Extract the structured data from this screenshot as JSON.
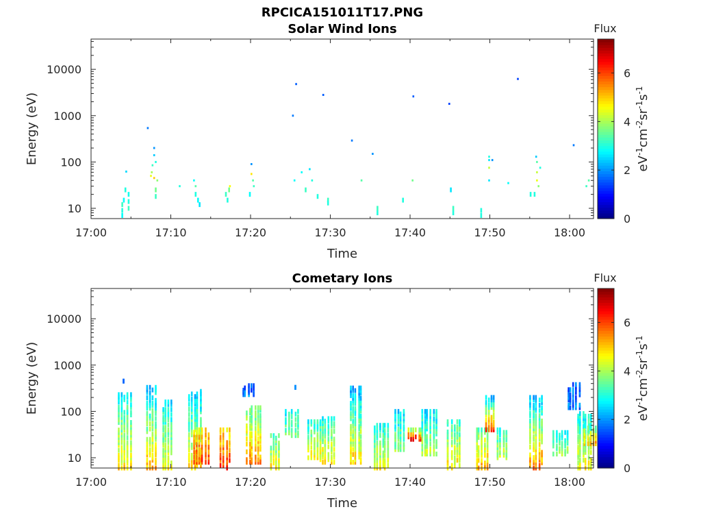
{
  "figure_title": "RPCICA151011T17.PNG",
  "chart_data": [
    {
      "type": "heatmap",
      "title": "Solar Wind Ions",
      "xlabel": "Time",
      "ylabel": "Energy (eV)",
      "yscale": "log",
      "xlim": [
        "17:00",
        "18:03"
      ],
      "ylim": [
        6,
        45000
      ],
      "xticks": [
        "17:00",
        "17:10",
        "17:20",
        "17:30",
        "17:40",
        "17:50",
        "18:00"
      ],
      "yticks": [
        "10",
        "100",
        "1000",
        "10000"
      ],
      "colorbar": {
        "label": "Flux",
        "unit": "eV⁻¹cm⁻²sr⁻¹s⁻¹",
        "range": [
          0,
          7.4
        ],
        "ticks": [
          "0",
          "2",
          "4",
          "6"
        ],
        "colormap": "jet"
      },
      "points": [
        [
          "17:03.8",
          7,
          2.8
        ],
        [
          "17:03.8",
          9,
          3.0
        ],
        [
          "17:03.8",
          12,
          3.2
        ],
        [
          "17:04.0",
          15,
          2.8
        ],
        [
          "17:04.2",
          25,
          3.0
        ],
        [
          "17:04.3",
          62,
          2.5
        ],
        [
          "17:04.6",
          10,
          3.2
        ],
        [
          "17:04.6",
          14,
          3.0
        ],
        [
          "17:04.6",
          20,
          2.9
        ],
        [
          "17:07.0",
          540,
          1.8
        ],
        [
          "17:07.4",
          50,
          4.5
        ],
        [
          "17:07.5",
          60,
          4.0
        ],
        [
          "17:07.6",
          85,
          3.2
        ],
        [
          "17:07.8",
          140,
          2.4
        ],
        [
          "17:07.8",
          200,
          2.0
        ],
        [
          "17:07.8",
          45,
          5.0
        ],
        [
          "17:08.0",
          100,
          3.0
        ],
        [
          "17:08.0",
          25,
          3.6
        ],
        [
          "17:08.0",
          18,
          3.2
        ],
        [
          "17:08.2",
          40,
          3.8
        ],
        [
          "17:11.0",
          30,
          3.0
        ],
        [
          "17:12.8",
          40,
          2.8
        ],
        [
          "17:13.0",
          30,
          3.4
        ],
        [
          "17:13.0",
          20,
          3.0
        ],
        [
          "17:13.3",
          15,
          2.8
        ],
        [
          "17:13.5",
          12,
          2.6
        ],
        [
          "17:16.8",
          20,
          3.2
        ],
        [
          "17:17.0",
          15,
          3.0
        ],
        [
          "17:17.2",
          25,
          3.6
        ],
        [
          "17:17.3",
          30,
          4.6
        ],
        [
          "17:20.0",
          90,
          2.0
        ],
        [
          "17:20.0",
          55,
          4.8
        ],
        [
          "17:20.2",
          40,
          3.4
        ],
        [
          "17:20.3",
          30,
          3.2
        ],
        [
          "17:19.8",
          20,
          2.8
        ],
        [
          "17:25.2",
          1000,
          1.8
        ],
        [
          "17:25.6",
          4800,
          1.6
        ],
        [
          "17:25.4",
          40,
          2.8
        ],
        [
          "17:26.3",
          60,
          2.8
        ],
        [
          "17:26.8",
          25,
          3.2
        ],
        [
          "17:27.3",
          70,
          2.6
        ],
        [
          "17:27.6",
          40,
          3.0
        ],
        [
          "17:28.3",
          18,
          3.0
        ],
        [
          "17:29.0",
          2800,
          1.6
        ],
        [
          "17:29.6",
          15,
          3.2
        ],
        [
          "17:29.6",
          13,
          3.0
        ],
        [
          "17:32.6",
          290,
          1.8
        ],
        [
          "17:33.8",
          40,
          3.4
        ],
        [
          "17:35.2",
          150,
          2.0
        ],
        [
          "17:35.8",
          8,
          3.0
        ],
        [
          "17:35.8",
          10,
          3.2
        ],
        [
          "17:39.0",
          15,
          3.0
        ],
        [
          "17:40.3",
          2600,
          1.6
        ],
        [
          "17:40.2",
          40,
          3.6
        ],
        [
          "17:44.8",
          1800,
          1.4
        ],
        [
          "17:45.0",
          25,
          2.6
        ],
        [
          "17:45.3",
          8,
          3.0
        ],
        [
          "17:45.3",
          10,
          3.2
        ],
        [
          "17:48.8",
          7,
          3.0
        ],
        [
          "17:48.8",
          9,
          3.0
        ],
        [
          "17:49.8",
          130,
          3.0
        ],
        [
          "17:49.8",
          110,
          2.6
        ],
        [
          "17:49.8",
          75,
          4.2
        ],
        [
          "17:50.2",
          110,
          2.0
        ],
        [
          "17:49.8",
          40,
          2.6
        ],
        [
          "17:52.2",
          35,
          2.8
        ],
        [
          "17:53.4",
          6200,
          1.4
        ],
        [
          "17:55.0",
          20,
          3.0
        ],
        [
          "17:55.5",
          20,
          3.0
        ],
        [
          "17:55.7",
          130,
          2.4
        ],
        [
          "17:55.8",
          60,
          4.2
        ],
        [
          "17:55.8",
          40,
          4.5
        ],
        [
          "17:55.8",
          100,
          3.4
        ],
        [
          "17:56.0",
          30,
          3.8
        ],
        [
          "17:56.2",
          75,
          3.0
        ],
        [
          "18:00.4",
          230,
          1.8
        ],
        [
          "18:02.0",
          30,
          3.2
        ],
        [
          "18:02.3",
          40,
          3.4
        ]
      ]
    },
    {
      "type": "heatmap",
      "title": "Cometary Ions",
      "xlabel": "Time",
      "ylabel": "Energy (eV)",
      "yscale": "log",
      "xlim": [
        "17:00",
        "18:03"
      ],
      "ylim": [
        6,
        45000
      ],
      "xticks": [
        "17:00",
        "17:10",
        "17:20",
        "17:30",
        "17:40",
        "17:50",
        "18:00"
      ],
      "yticks": [
        "10",
        "100",
        "1000",
        "10000"
      ],
      "colorbar": {
        "label": "Flux",
        "unit": "eV⁻¹cm⁻²sr⁻¹s⁻¹",
        "range": [
          0,
          7.4
        ],
        "ticks": [
          "0",
          "2",
          "4",
          "6"
        ],
        "colormap": "jet"
      },
      "bursts": [
        [
          "17:04.0",
          6,
          230,
          4.8,
          2.8
        ],
        [
          "17:04.5",
          450,
          450,
          1.8,
          1.8
        ],
        [
          "17:07.5",
          6,
          330,
          5.2,
          2.4
        ],
        [
          "17:09.5",
          6,
          160,
          4.6,
          2.6
        ],
        [
          "17:12.8",
          6,
          270,
          5.0,
          2.4
        ],
        [
          "17:13.4",
          8,
          40,
          6.0,
          4.8
        ],
        [
          "17:16.8",
          6,
          40,
          6.2,
          4.8
        ],
        [
          "17:20.0",
          8,
          120,
          5.6,
          3.4
        ],
        [
          "17:19.5",
          230,
          360,
          1.8,
          1.6
        ],
        [
          "17:23.0",
          6,
          30,
          4.8,
          3.2
        ],
        [
          "17:25.0",
          30,
          100,
          3.8,
          2.8
        ],
        [
          "17:26.2",
          330,
          330,
          1.8,
          1.8
        ],
        [
          "17:27.8",
          10,
          60,
          4.6,
          3.0
        ],
        [
          "17:29.2",
          8,
          70,
          4.8,
          3.0
        ],
        [
          "17:33.0",
          8,
          320,
          5.0,
          2.2
        ],
        [
          "17:36.0",
          6,
          50,
          4.6,
          2.8
        ],
        [
          "17:38.6",
          15,
          100,
          3.8,
          2.6
        ],
        [
          "17:40.2",
          25,
          40,
          6.4,
          4.0
        ],
        [
          "17:42.0",
          12,
          100,
          4.2,
          2.6
        ],
        [
          "17:45.3",
          6,
          60,
          4.8,
          3.2
        ],
        [
          "17:48.8",
          6,
          40,
          5.2,
          3.6
        ],
        [
          "17:50.0",
          40,
          200,
          6.0,
          2.4
        ],
        [
          "17:51.5",
          10,
          40,
          4.2,
          3.0
        ],
        [
          "17:55.6",
          6,
          200,
          5.6,
          2.4
        ],
        [
          "17:58.5",
          12,
          35,
          4.0,
          3.0
        ],
        [
          "18:00.3",
          120,
          380,
          1.8,
          1.6
        ],
        [
          "18:01.5",
          6,
          90,
          4.6,
          2.8
        ],
        [
          "18:02.4",
          20,
          50,
          5.4,
          3.2
        ]
      ]
    }
  ]
}
